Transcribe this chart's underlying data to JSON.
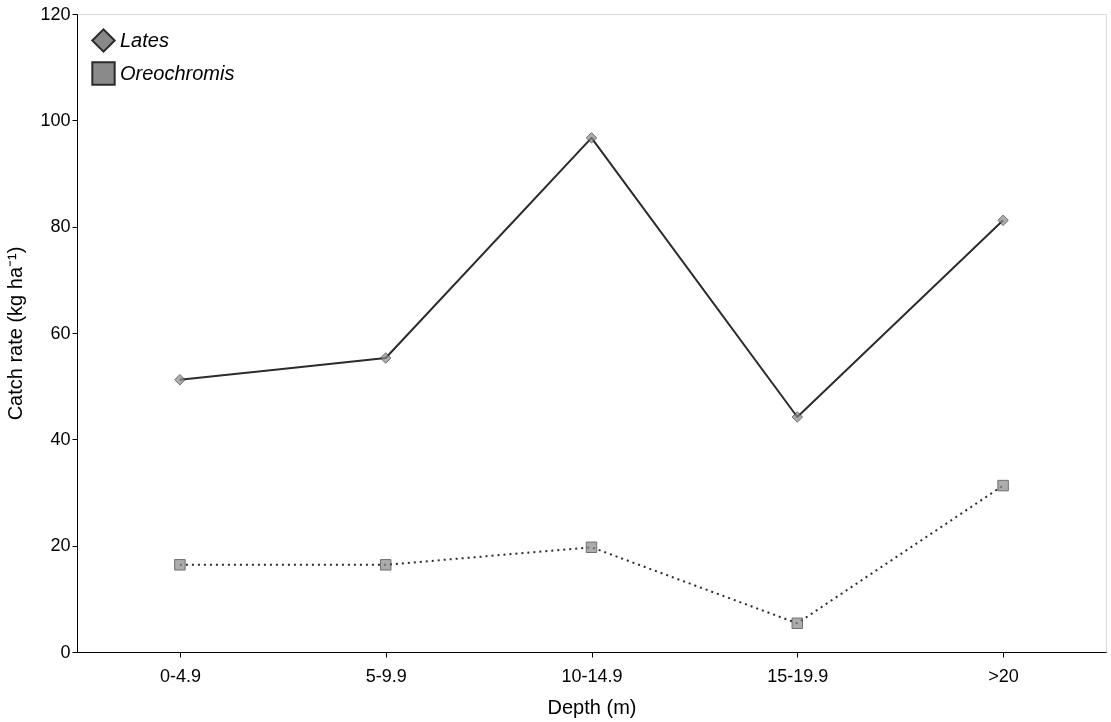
{
  "chart_data": {
    "type": "line",
    "xlabel": "Depth (m)",
    "ylabel": "Catch rate (kg ha⁻¹)",
    "categories": [
      "0-4.9",
      "5-9.9",
      "10-14.9",
      "15-19.9",
      ">20"
    ],
    "series": [
      {
        "name": "Lates",
        "color": "#2b2b2b",
        "marker": "diamond",
        "line_style": "solid",
        "values": [
          51.2,
          55.3,
          96.7,
          44.2,
          81.2
        ]
      },
      {
        "name": "Oreochromis",
        "color": "#2b2b2b",
        "marker": "square",
        "line_style": "dotted",
        "values": [
          16.4,
          16.4,
          19.7,
          5.4,
          31.3
        ]
      }
    ],
    "ylim": [
      0,
      120
    ],
    "yticks": [
      0,
      20,
      40,
      60,
      80,
      100,
      120
    ],
    "grid": false,
    "legend": "top left"
  }
}
